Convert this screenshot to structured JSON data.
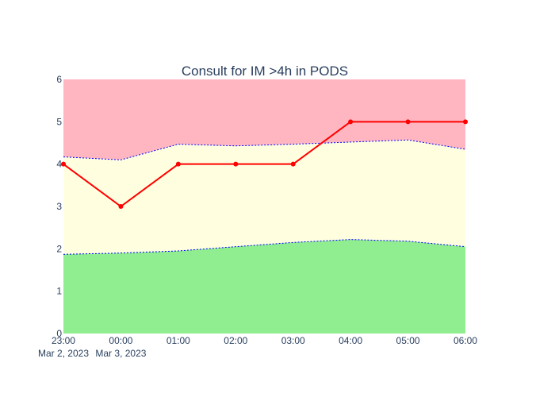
{
  "chart_data": {
    "type": "line",
    "title": "Consult for IM >4h in PODS",
    "x": [
      "23:00",
      "00:00",
      "01:00",
      "02:00",
      "03:00",
      "04:00",
      "05:00",
      "06:00"
    ],
    "x_date_labels": [
      {
        "index": 0,
        "text": "Mar 2, 2023"
      },
      {
        "index": 1,
        "text": "Mar 3, 2023"
      }
    ],
    "ylim": [
      0,
      6
    ],
    "yticks": [
      0,
      1,
      2,
      3,
      4,
      5,
      6
    ],
    "grid": false,
    "bands": {
      "lower": [
        1.87,
        1.9,
        1.95,
        2.05,
        2.15,
        2.22,
        2.18,
        2.05
      ],
      "upper": [
        4.17,
        4.1,
        4.47,
        4.43,
        4.47,
        4.52,
        4.57,
        4.35
      ]
    },
    "series": [
      {
        "values": [
          4,
          3,
          4,
          4,
          4,
          5,
          5,
          5
        ]
      }
    ],
    "colors": {
      "low_band": "#90ee90",
      "mid_band": "#ffffe0",
      "high_band": "#ffb6c1",
      "band_edge": "#0000ff",
      "series": "#ff0000",
      "text": "#2a3f5f"
    }
  }
}
